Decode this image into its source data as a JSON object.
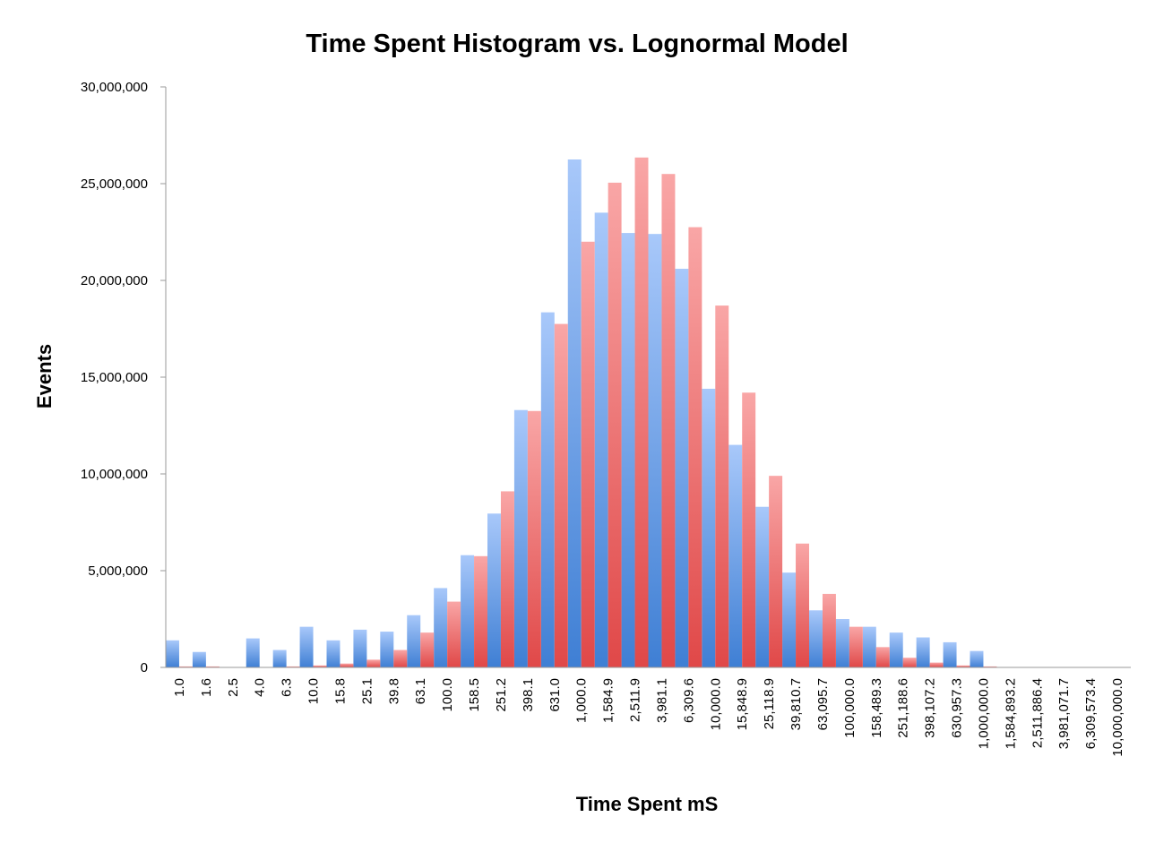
{
  "chart_data": {
    "type": "bar",
    "title": "Time Spent Histogram vs. Lognormal Model",
    "xlabel": "Time Spent mS",
    "ylabel": "Events",
    "ylim": [
      0,
      30000000
    ],
    "yticks": [
      "0",
      "5,000,000",
      "10,000,000",
      "15,000,000",
      "20,000,000",
      "25,000,000",
      "30,000,000"
    ],
    "grid": false,
    "legend": "none",
    "categories": [
      "1.0",
      "1.6",
      "2.5",
      "4.0",
      "6.3",
      "10.0",
      "15.8",
      "25.1",
      "39.8",
      "63.1",
      "100.0",
      "158.5",
      "251.2",
      "398.1",
      "631.0",
      "1,000.0",
      "1,584.9",
      "2,511.9",
      "3,981.1",
      "6,309.6",
      "10,000.0",
      "15,848.9",
      "25,118.9",
      "39,810.7",
      "63,095.7",
      "100,000.0",
      "158,489.3",
      "251,188.6",
      "398,107.2",
      "630,957.3",
      "1,000,000.0",
      "1,584,893.2",
      "2,511,886.4",
      "3,981,071.7",
      "6,309,573.4",
      "10,000,000.0"
    ],
    "series": [
      {
        "color": "#6fa0e8",
        "values": [
          1400000,
          800000,
          0,
          1500000,
          900000,
          2100000,
          1400000,
          1950000,
          1850000,
          2700000,
          4100000,
          5800000,
          7950000,
          13300000,
          18350000,
          26250000,
          23500000,
          22450000,
          22400000,
          20600000,
          14400000,
          11500000,
          8300000,
          4900000,
          2950000,
          2500000,
          2100000,
          1800000,
          1550000,
          1300000,
          850000,
          0,
          0,
          0,
          0,
          0
        ]
      },
      {
        "color": "#f27272",
        "values": [
          50000,
          50000,
          0,
          0,
          50000,
          100000,
          200000,
          400000,
          900000,
          1800000,
          3400000,
          5750000,
          9100000,
          13250000,
          17750000,
          22000000,
          25050000,
          26350000,
          25500000,
          22750000,
          18700000,
          14200000,
          9900000,
          6400000,
          3800000,
          2100000,
          1050000,
          500000,
          250000,
          100000,
          50000,
          20000,
          10000,
          10000,
          5000,
          0
        ]
      }
    ]
  }
}
